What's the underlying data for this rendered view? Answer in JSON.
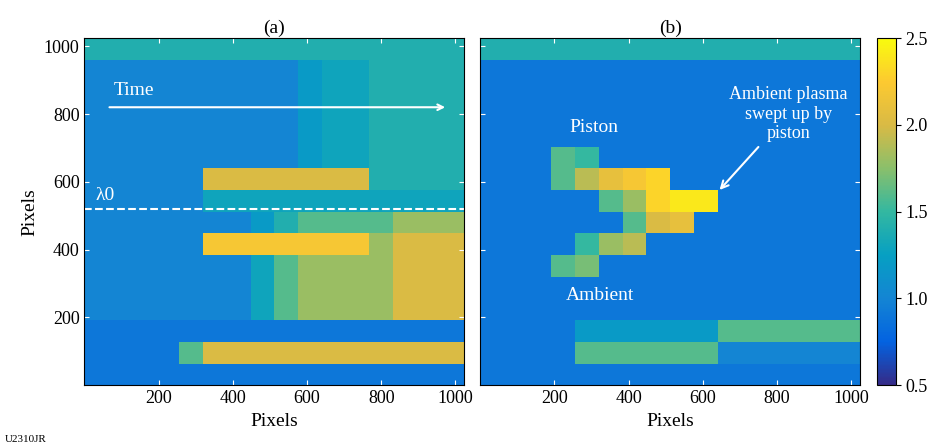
{
  "chart_data": [
    {
      "type": "heatmap",
      "title": "(a)",
      "x_label": "Pixels",
      "y_label": "Pixels",
      "xlim": [
        0,
        1024
      ],
      "ylim": [
        0,
        1024
      ],
      "xticks": [
        200,
        400,
        600,
        800,
        1000
      ],
      "yticks": [
        200,
        400,
        600,
        800,
        1000
      ],
      "x_edges": [
        0,
        64,
        128,
        192,
        256,
        320,
        384,
        448,
        512,
        576,
        640,
        704,
        768,
        832,
        896,
        960,
        1024
      ],
      "y_edges": [
        0,
        64,
        128,
        192,
        256,
        320,
        384,
        448,
        512,
        576,
        640,
        704,
        768,
        832,
        896,
        960,
        1024
      ],
      "cells": [
        [
          0.9,
          0.9,
          0.9,
          0.9,
          0.9,
          0.9,
          0.9,
          0.9,
          0.9,
          0.9,
          0.9,
          0.9,
          0.9,
          0.9,
          0.9,
          0.9
        ],
        [
          0.9,
          0.9,
          0.9,
          0.9,
          1.6,
          2.0,
          2.0,
          2.0,
          2.0,
          2.0,
          2.0,
          2.0,
          2.0,
          2.0,
          2.0,
          2.0
        ],
        [
          0.9,
          0.9,
          0.9,
          0.9,
          0.9,
          0.9,
          0.9,
          0.9,
          0.9,
          0.9,
          0.9,
          0.9,
          0.9,
          0.9,
          0.9,
          0.9
        ],
        [
          1.0,
          1.0,
          1.0,
          1.0,
          1.0,
          1.0,
          1.0,
          1.3,
          1.6,
          1.8,
          1.8,
          1.8,
          1.8,
          2.0,
          2.0,
          2.0
        ],
        [
          1.0,
          1.0,
          1.0,
          1.0,
          1.0,
          1.0,
          1.0,
          1.3,
          1.6,
          1.8,
          1.8,
          1.8,
          1.8,
          2.0,
          2.0,
          2.0
        ],
        [
          1.0,
          1.0,
          1.0,
          1.0,
          1.0,
          1.0,
          1.0,
          1.3,
          1.6,
          1.8,
          1.8,
          1.8,
          1.8,
          2.0,
          2.0,
          2.0
        ],
        [
          1.0,
          1.0,
          1.0,
          1.0,
          1.0,
          2.2,
          2.2,
          2.2,
          2.2,
          2.2,
          2.2,
          2.2,
          1.8,
          2.0,
          2.0,
          2.0
        ],
        [
          1.0,
          1.0,
          1.0,
          1.0,
          1.0,
          1.0,
          1.0,
          1.2,
          1.4,
          1.6,
          1.6,
          1.6,
          1.6,
          1.8,
          1.8,
          1.8
        ],
        [
          1.0,
          1.0,
          1.0,
          1.0,
          1.0,
          1.3,
          1.3,
          1.3,
          1.3,
          1.3,
          1.3,
          1.3,
          1.3,
          1.3,
          1.3,
          1.3
        ],
        [
          1.0,
          1.0,
          1.0,
          1.0,
          1.0,
          2.0,
          2.0,
          2.0,
          2.0,
          2.0,
          2.0,
          2.0,
          1.4,
          1.4,
          1.4,
          1.4
        ],
        [
          1.0,
          1.0,
          1.0,
          1.0,
          1.0,
          1.0,
          1.0,
          1.0,
          1.0,
          1.2,
          1.3,
          1.3,
          1.4,
          1.4,
          1.4,
          1.4
        ],
        [
          1.0,
          1.0,
          1.0,
          1.0,
          1.0,
          1.0,
          1.0,
          1.0,
          1.0,
          1.2,
          1.3,
          1.3,
          1.4,
          1.4,
          1.4,
          1.4
        ],
        [
          1.0,
          1.0,
          1.0,
          1.0,
          1.0,
          1.0,
          1.0,
          1.0,
          1.0,
          1.2,
          1.3,
          1.3,
          1.4,
          1.4,
          1.4,
          1.4
        ],
        [
          1.0,
          1.0,
          1.0,
          1.0,
          1.0,
          1.0,
          1.0,
          1.0,
          1.0,
          1.2,
          1.3,
          1.3,
          1.4,
          1.4,
          1.4,
          1.4
        ],
        [
          1.0,
          1.0,
          1.0,
          1.0,
          1.0,
          1.0,
          1.0,
          1.0,
          1.0,
          1.2,
          1.3,
          1.3,
          1.4,
          1.4,
          1.4,
          1.4
        ],
        [
          1.4,
          1.4,
          1.4,
          1.4,
          1.4,
          1.4,
          1.4,
          1.4,
          1.4,
          1.4,
          1.4,
          1.4,
          1.4,
          1.4,
          1.4,
          1.4
        ]
      ],
      "color_range": [
        0.5,
        2.5
      ],
      "color_ticks": [
        0.5,
        1.0,
        1.5,
        2.0,
        2.5
      ],
      "reference_line": {
        "label": "λ0",
        "value": 520
      },
      "annotations": [
        "Time"
      ]
    },
    {
      "type": "heatmap",
      "title": "(b)",
      "x_label": "Pixels",
      "tick_labels": "x",
      "xlim": [
        0,
        1024
      ],
      "ylim": [
        0,
        1024
      ],
      "xticks": [
        200,
        400,
        600,
        800,
        1000
      ],
      "yticks": [
        200,
        400,
        600,
        800,
        1000
      ],
      "x_edges": [
        0,
        64,
        128,
        192,
        256,
        320,
        384,
        448,
        512,
        576,
        640,
        704,
        768,
        832,
        896,
        960,
        1024
      ],
      "y_edges": [
        0,
        64,
        128,
        192,
        256,
        320,
        384,
        448,
        512,
        576,
        640,
        704,
        768,
        832,
        896,
        960,
        1024
      ],
      "cells": [
        [
          0.9,
          0.9,
          0.9,
          0.9,
          0.9,
          0.9,
          0.9,
          0.9,
          0.9,
          0.9,
          0.9,
          0.9,
          0.9,
          0.9,
          0.9,
          0.9
        ],
        [
          0.9,
          0.9,
          0.9,
          0.9,
          1.6,
          1.6,
          1.6,
          1.6,
          1.6,
          1.6,
          1.0,
          1.0,
          1.0,
          1.0,
          1.0,
          1.0
        ],
        [
          0.9,
          0.9,
          0.9,
          0.9,
          1.2,
          1.2,
          1.2,
          1.2,
          1.2,
          1.2,
          1.6,
          1.6,
          1.6,
          1.6,
          1.6,
          1.6
        ],
        [
          0.9,
          0.9,
          0.9,
          0.9,
          0.9,
          0.9,
          0.9,
          0.9,
          0.9,
          0.9,
          0.9,
          0.9,
          0.9,
          0.9,
          0.9,
          0.9
        ],
        [
          0.9,
          0.9,
          0.9,
          0.9,
          0.9,
          0.9,
          0.9,
          0.9,
          0.9,
          0.9,
          0.9,
          0.9,
          0.9,
          0.9,
          0.9,
          0.9
        ],
        [
          0.9,
          0.9,
          0.9,
          1.6,
          1.7,
          0.9,
          0.9,
          0.9,
          0.9,
          0.9,
          0.9,
          0.9,
          0.9,
          0.9,
          0.9,
          0.9
        ],
        [
          0.9,
          0.9,
          0.9,
          0.9,
          1.5,
          1.8,
          1.9,
          0.9,
          0.9,
          0.9,
          0.9,
          0.9,
          0.9,
          0.9,
          0.9,
          0.9
        ],
        [
          0.9,
          0.9,
          0.9,
          0.9,
          0.9,
          0.9,
          1.6,
          2.0,
          2.1,
          0.9,
          0.9,
          0.9,
          0.9,
          0.9,
          0.9,
          0.9
        ],
        [
          0.9,
          0.9,
          0.9,
          0.9,
          0.9,
          1.6,
          1.8,
          2.3,
          2.4,
          2.4,
          0.9,
          0.9,
          0.9,
          0.9,
          0.9,
          0.9
        ],
        [
          0.9,
          0.9,
          0.9,
          1.6,
          1.9,
          2.1,
          2.2,
          2.3,
          0.9,
          0.9,
          0.9,
          0.9,
          0.9,
          0.9,
          0.9,
          0.9
        ],
        [
          0.9,
          0.9,
          0.9,
          1.6,
          1.5,
          0.9,
          0.9,
          0.9,
          0.9,
          0.9,
          0.9,
          0.9,
          0.9,
          0.9,
          0.9,
          0.9
        ],
        [
          0.9,
          0.9,
          0.9,
          0.9,
          0.9,
          0.9,
          0.9,
          0.9,
          0.9,
          0.9,
          0.9,
          0.9,
          0.9,
          0.9,
          0.9,
          0.9
        ],
        [
          0.9,
          0.9,
          0.9,
          0.9,
          0.9,
          0.9,
          0.9,
          0.9,
          0.9,
          0.9,
          0.9,
          0.9,
          0.9,
          0.9,
          0.9,
          0.9
        ],
        [
          0.9,
          0.9,
          0.9,
          0.9,
          0.9,
          0.9,
          0.9,
          0.9,
          0.9,
          0.9,
          0.9,
          0.9,
          0.9,
          0.9,
          0.9,
          0.9
        ],
        [
          0.9,
          0.9,
          0.9,
          0.9,
          0.9,
          0.9,
          0.9,
          0.9,
          0.9,
          0.9,
          0.9,
          0.9,
          0.9,
          0.9,
          0.9,
          0.9
        ],
        [
          1.4,
          1.4,
          1.4,
          1.4,
          1.4,
          1.4,
          1.4,
          1.4,
          1.4,
          1.4,
          1.4,
          1.4,
          1.4,
          1.4,
          1.4,
          1.4
        ]
      ],
      "color_range": [
        0.5,
        2.5
      ],
      "color_ticks": [
        0.5,
        1.0,
        1.5,
        2.0,
        2.5
      ],
      "annotations": [
        "Piston",
        "Ambient",
        "Ambient plasma\nswept up by\npiston"
      ]
    }
  ],
  "footer": "U2310JR"
}
